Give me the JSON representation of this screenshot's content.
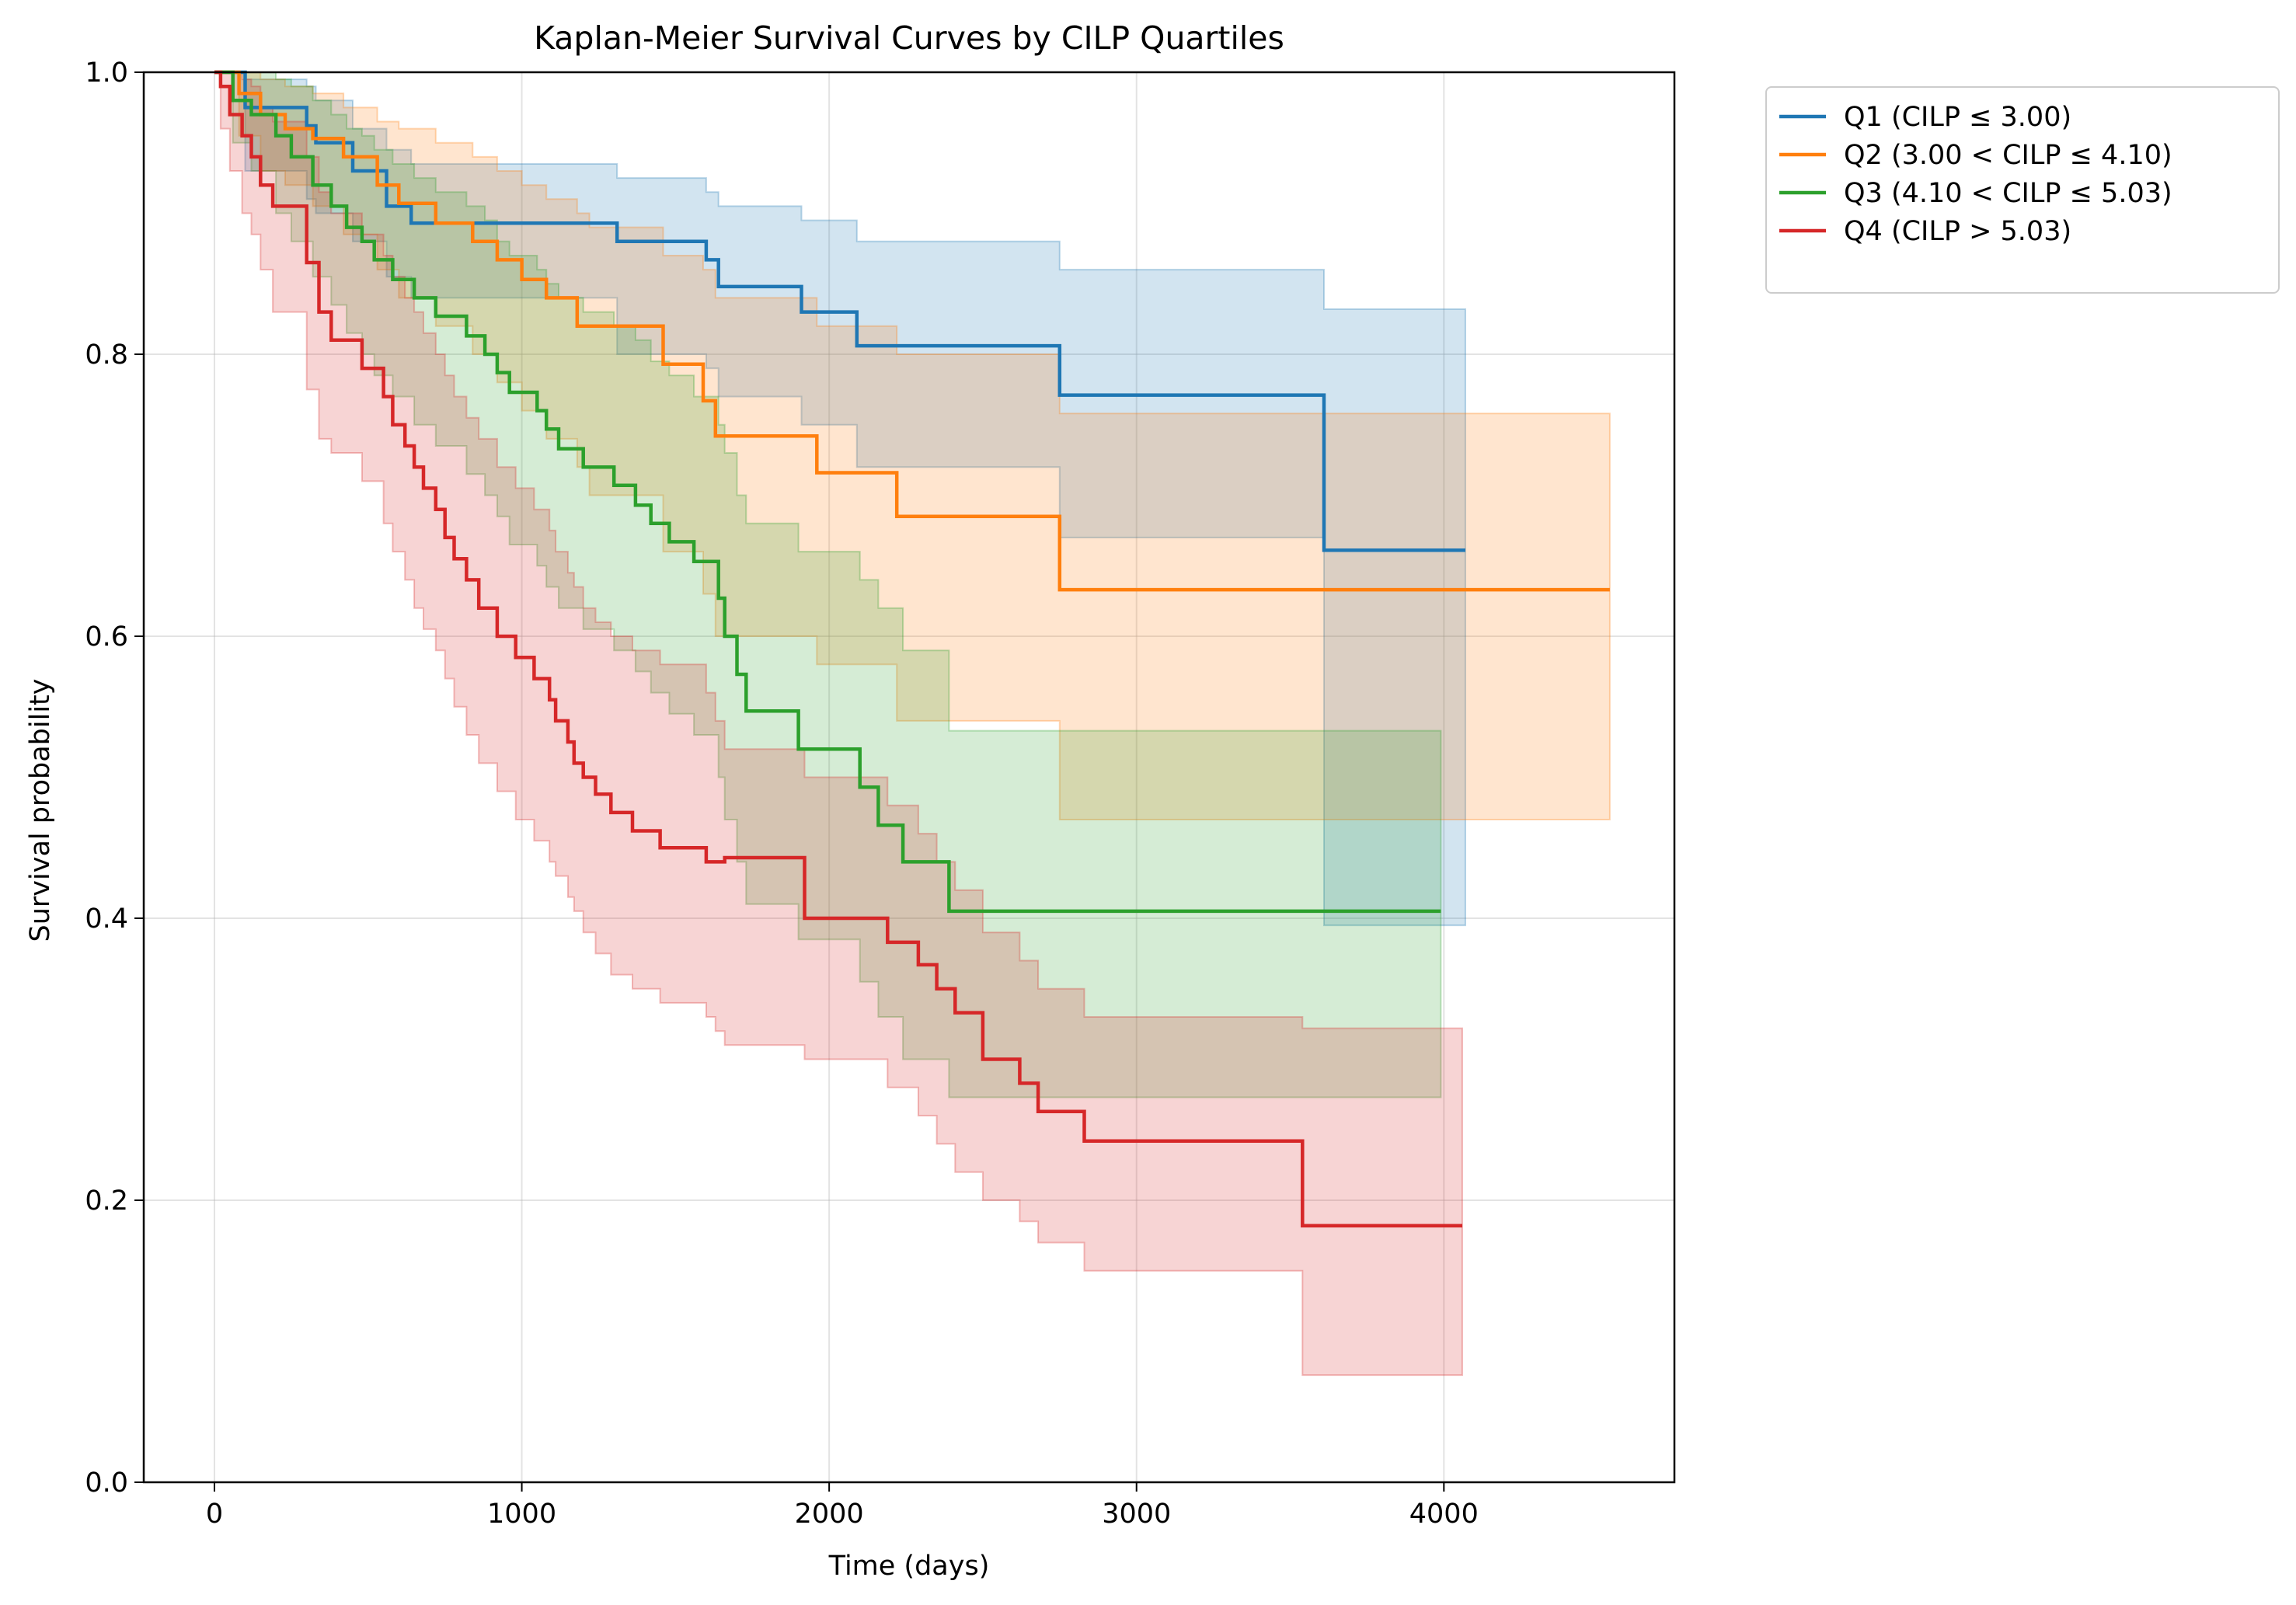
{
  "chart_data": {
    "type": "line",
    "title": "Kaplan-Meier Survival Curves by CILP Quartiles",
    "xlabel": "Time (days)",
    "ylabel": "Survival probability",
    "xlim": [
      -230,
      4750
    ],
    "ylim": [
      0.0,
      1.0
    ],
    "xticks": [
      0,
      1000,
      2000,
      3000,
      4000
    ],
    "xtick_labels": [
      "0",
      "1000",
      "2000",
      "3000",
      "4000"
    ],
    "yticks": [
      0.0,
      0.2,
      0.4,
      0.6,
      0.8,
      1.0
    ],
    "ytick_labels": [
      "0.0",
      "0.2",
      "0.4",
      "0.6",
      "0.8",
      "1.0"
    ],
    "grid": true,
    "legend_position": "outside-top-right",
    "step_function": true,
    "confidence_bands": true,
    "series": [
      {
        "name": "Q1 (CILP ≤ 3.00)",
        "color": "#1f77b4",
        "x": [
          0,
          100,
          300,
          330,
          450,
          560,
          640,
          1310,
          1600,
          1640,
          1910,
          2090,
          2750,
          3610,
          4070
        ],
        "y": [
          1.0,
          0.975,
          0.962,
          0.95,
          0.93,
          0.905,
          0.893,
          0.88,
          0.867,
          0.848,
          0.83,
          0.806,
          0.771,
          0.661,
          0.661
        ],
        "ci_upper": [
          1.0,
          0.995,
          0.99,
          0.98,
          0.96,
          0.945,
          0.935,
          0.925,
          0.915,
          0.905,
          0.895,
          0.88,
          0.86,
          0.832,
          0.832
        ],
        "ci_lower": [
          1.0,
          0.93,
          0.91,
          0.9,
          0.88,
          0.855,
          0.84,
          0.8,
          0.79,
          0.77,
          0.75,
          0.72,
          0.67,
          0.395,
          0.395
        ]
      },
      {
        "name": "Q2 (3.00 < CILP ≤ 4.10)",
        "color": "#ff7f0e",
        "x": [
          0,
          80,
          150,
          230,
          320,
          420,
          530,
          600,
          720,
          840,
          920,
          1000,
          1080,
          1180,
          1220,
          1460,
          1590,
          1630,
          1960,
          2220,
          2750,
          4540
        ],
        "y": [
          1.0,
          0.985,
          0.97,
          0.96,
          0.953,
          0.94,
          0.92,
          0.907,
          0.893,
          0.88,
          0.867,
          0.853,
          0.84,
          0.82,
          0.82,
          0.793,
          0.767,
          0.742,
          0.716,
          0.685,
          0.633,
          0.633
        ],
        "ci_upper": [
          1.0,
          1.0,
          0.995,
          0.99,
          0.985,
          0.975,
          0.965,
          0.96,
          0.95,
          0.94,
          0.93,
          0.92,
          0.91,
          0.9,
          0.89,
          0.87,
          0.86,
          0.84,
          0.82,
          0.8,
          0.758,
          0.758
        ],
        "ci_lower": [
          1.0,
          0.955,
          0.93,
          0.92,
          0.905,
          0.885,
          0.86,
          0.84,
          0.82,
          0.8,
          0.78,
          0.76,
          0.74,
          0.72,
          0.7,
          0.66,
          0.63,
          0.6,
          0.58,
          0.54,
          0.47,
          0.47
        ]
      },
      {
        "name": "Q3 (4.10 < CILP ≤ 5.03)",
        "color": "#2ca02c",
        "x": [
          0,
          60,
          120,
          200,
          250,
          320,
          380,
          430,
          480,
          520,
          580,
          650,
          720,
          820,
          880,
          920,
          960,
          1050,
          1080,
          1120,
          1200,
          1300,
          1370,
          1420,
          1480,
          1560,
          1640,
          1660,
          1700,
          1730,
          1900,
          2100,
          2160,
          2240,
          2390,
          3990
        ],
        "y": [
          1.0,
          0.98,
          0.97,
          0.955,
          0.94,
          0.92,
          0.905,
          0.89,
          0.88,
          0.867,
          0.853,
          0.84,
          0.827,
          0.813,
          0.8,
          0.787,
          0.773,
          0.76,
          0.747,
          0.733,
          0.72,
          0.707,
          0.693,
          0.68,
          0.667,
          0.653,
          0.627,
          0.6,
          0.573,
          0.547,
          0.52,
          0.493,
          0.466,
          0.44,
          0.405,
          0.405
        ],
        "ci_upper": [
          1.0,
          1.0,
          1.0,
          0.995,
          0.99,
          0.98,
          0.97,
          0.96,
          0.955,
          0.945,
          0.935,
          0.925,
          0.915,
          0.905,
          0.895,
          0.88,
          0.87,
          0.86,
          0.85,
          0.84,
          0.83,
          0.82,
          0.81,
          0.795,
          0.785,
          0.77,
          0.75,
          0.73,
          0.7,
          0.68,
          0.66,
          0.64,
          0.62,
          0.59,
          0.533,
          0.533
        ],
        "ci_lower": [
          1.0,
          0.95,
          0.93,
          0.9,
          0.88,
          0.855,
          0.835,
          0.815,
          0.8,
          0.785,
          0.77,
          0.75,
          0.735,
          0.715,
          0.7,
          0.685,
          0.665,
          0.65,
          0.635,
          0.62,
          0.605,
          0.59,
          0.575,
          0.56,
          0.545,
          0.53,
          0.5,
          0.47,
          0.44,
          0.41,
          0.385,
          0.355,
          0.33,
          0.3,
          0.273,
          0.273
        ]
      },
      {
        "name": "Q4 (CILP > 5.03)",
        "color": "#d62728",
        "x": [
          0,
          20,
          50,
          90,
          120,
          150,
          190,
          300,
          340,
          380,
          480,
          550,
          580,
          620,
          650,
          680,
          720,
          750,
          780,
          820,
          860,
          920,
          980,
          1040,
          1090,
          1110,
          1150,
          1170,
          1200,
          1240,
          1290,
          1360,
          1450,
          1600,
          1630,
          1660,
          1920,
          1970,
          2190,
          2290,
          2350,
          2410,
          2500,
          2620,
          2680,
          2830,
          3540,
          4060
        ],
        "y": [
          1.0,
          0.99,
          0.97,
          0.955,
          0.94,
          0.92,
          0.905,
          0.865,
          0.83,
          0.81,
          0.79,
          0.77,
          0.75,
          0.735,
          0.72,
          0.705,
          0.69,
          0.67,
          0.655,
          0.64,
          0.62,
          0.6,
          0.585,
          0.57,
          0.555,
          0.54,
          0.525,
          0.51,
          0.5,
          0.488,
          0.475,
          0.462,
          0.45,
          0.44,
          0.44,
          0.443,
          0.4,
          0.4,
          0.383,
          0.367,
          0.35,
          0.333,
          0.3,
          0.283,
          0.263,
          0.242,
          0.182,
          0.182
        ],
        "ci_upper": [
          1.0,
          1.0,
          1.0,
          0.995,
          0.99,
          0.975,
          0.965,
          0.94,
          0.915,
          0.9,
          0.885,
          0.87,
          0.855,
          0.84,
          0.83,
          0.815,
          0.8,
          0.785,
          0.77,
          0.755,
          0.74,
          0.72,
          0.705,
          0.69,
          0.675,
          0.66,
          0.645,
          0.635,
          0.62,
          0.61,
          0.6,
          0.59,
          0.58,
          0.56,
          0.54,
          0.52,
          0.5,
          0.5,
          0.48,
          0.46,
          0.44,
          0.42,
          0.39,
          0.37,
          0.35,
          0.33,
          0.322,
          0.322
        ],
        "ci_lower": [
          1.0,
          0.96,
          0.93,
          0.9,
          0.885,
          0.86,
          0.83,
          0.775,
          0.74,
          0.73,
          0.71,
          0.68,
          0.66,
          0.64,
          0.62,
          0.605,
          0.59,
          0.57,
          0.55,
          0.53,
          0.51,
          0.49,
          0.47,
          0.455,
          0.44,
          0.43,
          0.415,
          0.405,
          0.39,
          0.375,
          0.36,
          0.35,
          0.34,
          0.33,
          0.32,
          0.31,
          0.3,
          0.3,
          0.28,
          0.26,
          0.24,
          0.22,
          0.2,
          0.185,
          0.17,
          0.15,
          0.076,
          0.076
        ]
      }
    ]
  }
}
